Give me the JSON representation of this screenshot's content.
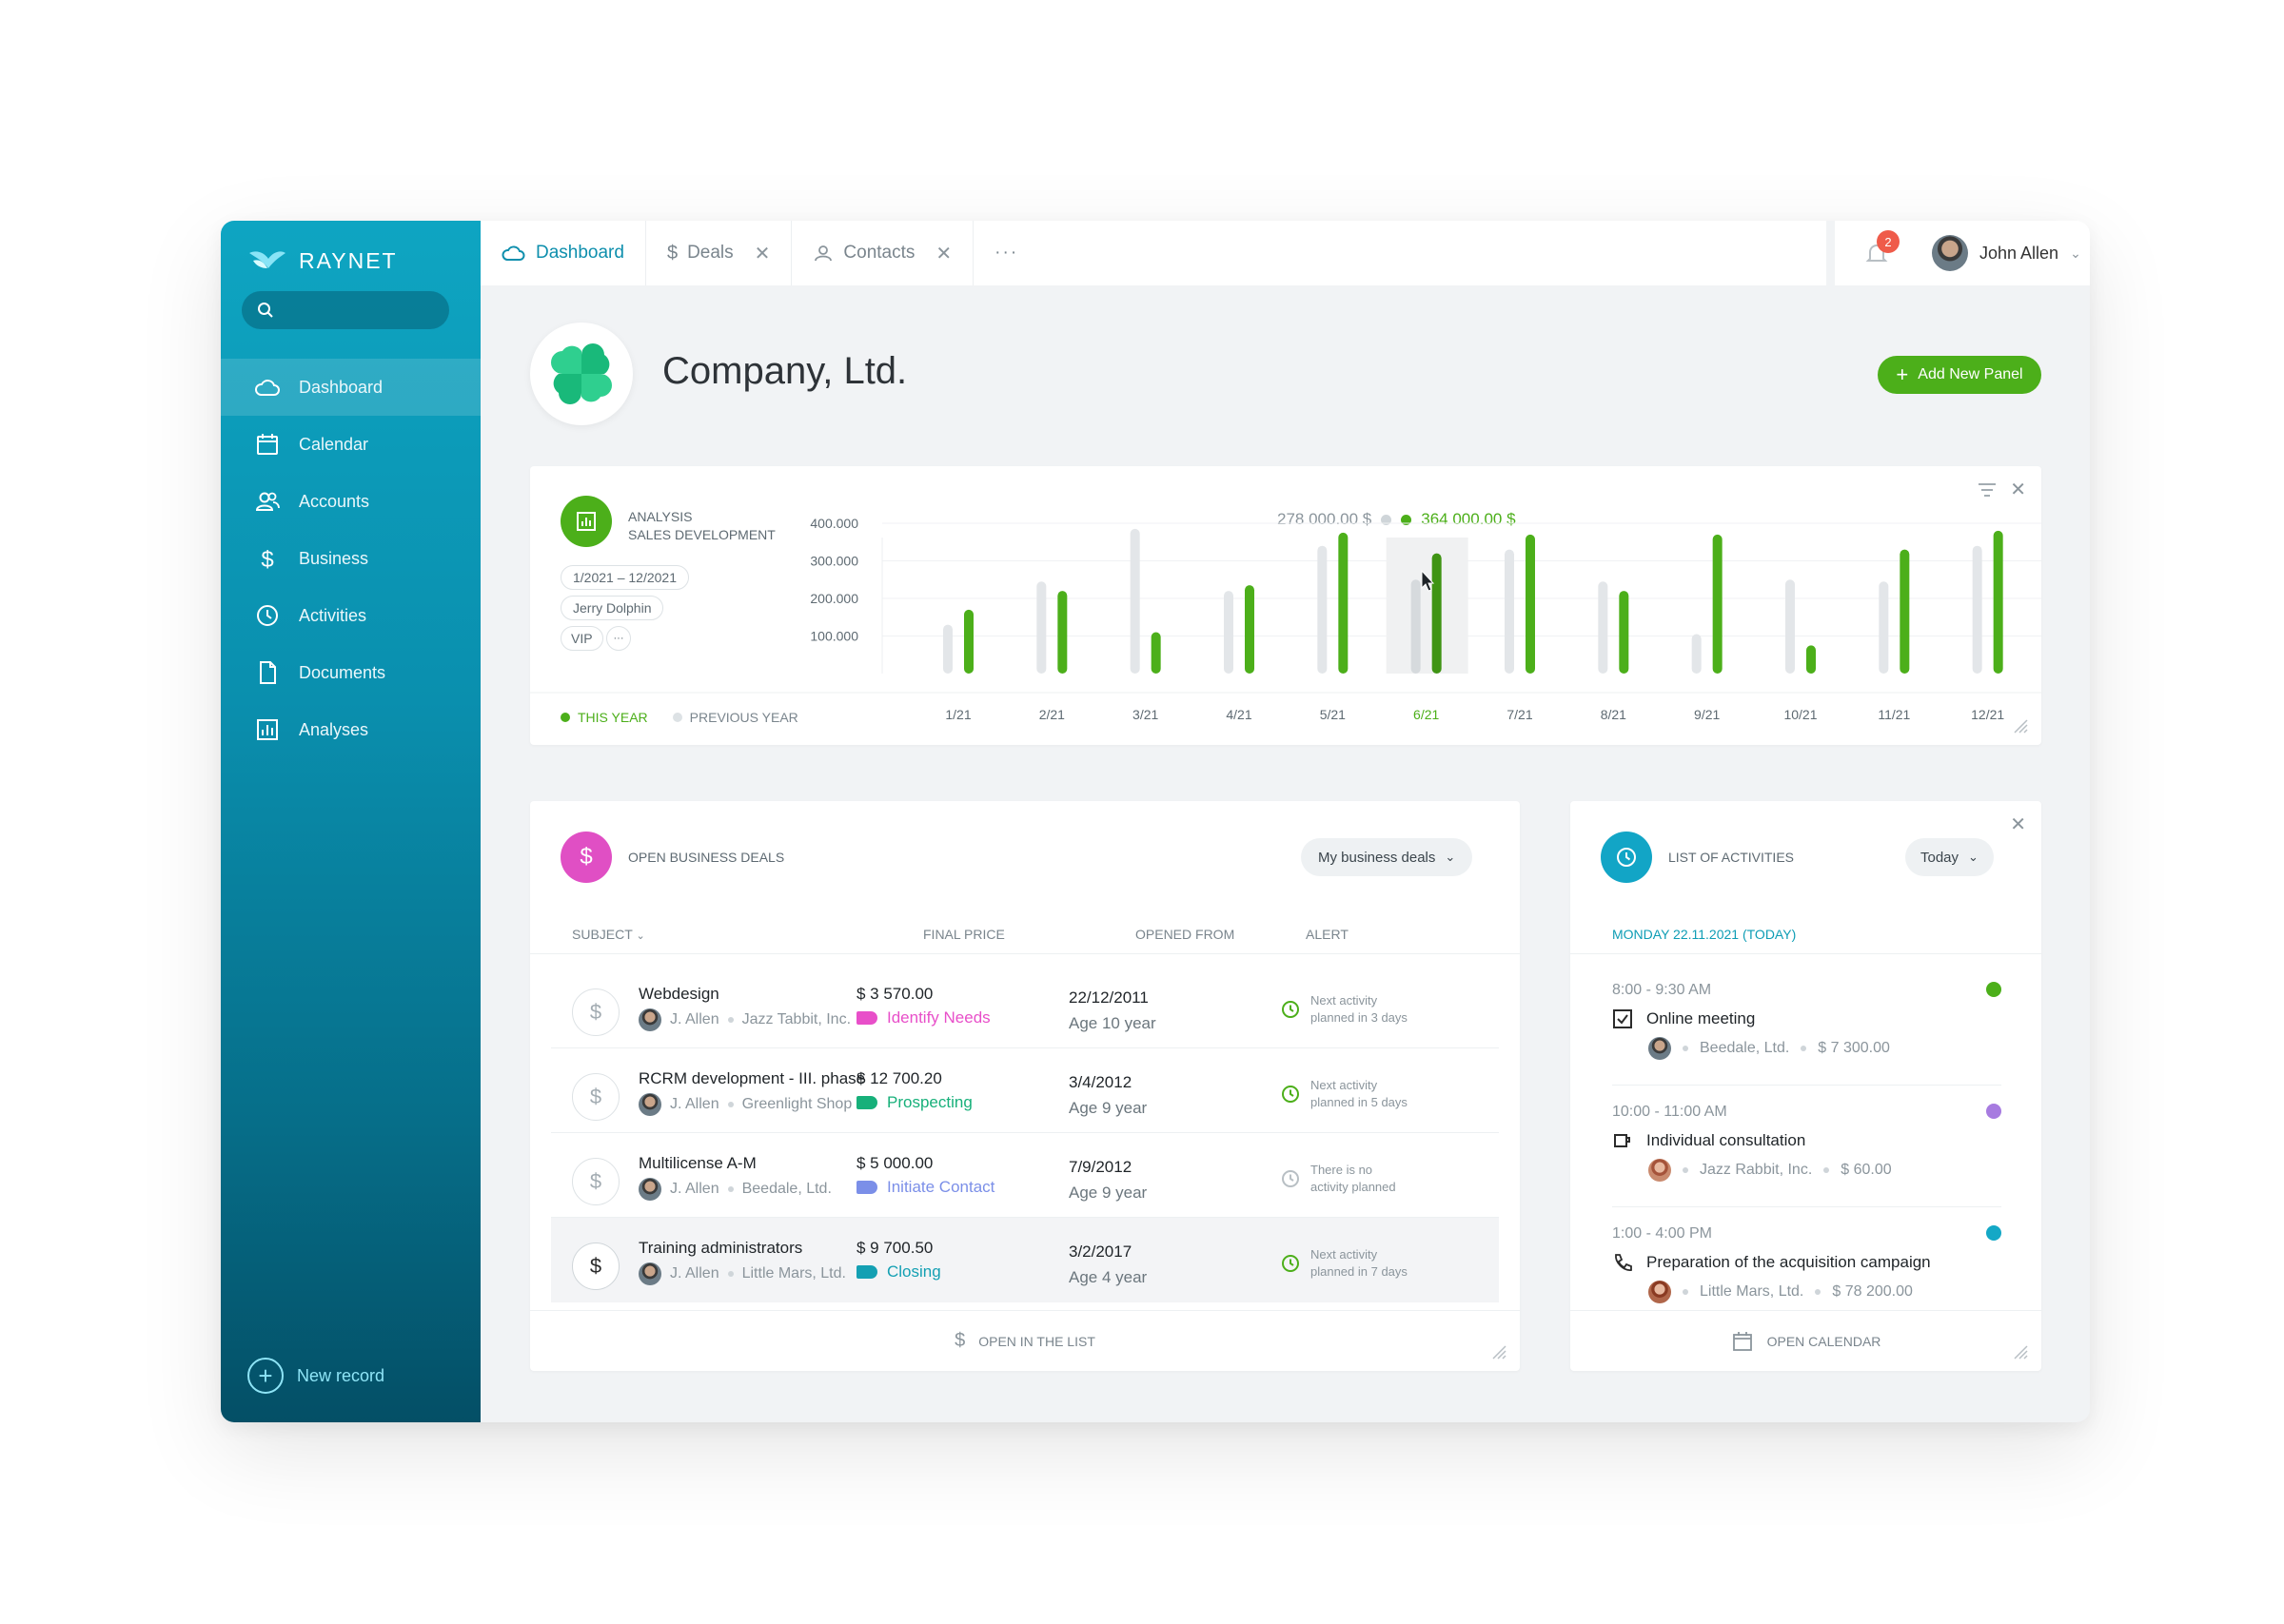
{
  "app": {
    "logo_text": "RAYNET",
    "search_placeholder": "",
    "nav": [
      {
        "label": "Dashboard",
        "icon": "cloud-icon",
        "active": true
      },
      {
        "label": "Calendar",
        "icon": "calendar-icon",
        "active": false
      },
      {
        "label": "Accounts",
        "icon": "users-icon",
        "active": false
      },
      {
        "label": "Business",
        "icon": "dollar-icon",
        "active": false
      },
      {
        "label": "Activities",
        "icon": "clock-icon",
        "active": false
      },
      {
        "label": "Documents",
        "icon": "document-icon",
        "active": false
      },
      {
        "label": "Analyses",
        "icon": "chart-icon",
        "active": false
      }
    ],
    "new_record": "New record"
  },
  "tabs": [
    {
      "label": "Dashboard",
      "icon": "cloud-icon",
      "active": true,
      "closable": false
    },
    {
      "label": "Deals",
      "icon": "dollar-icon",
      "active": false,
      "closable": true
    },
    {
      "label": "Contacts",
      "icon": "user-icon",
      "active": false,
      "closable": true
    }
  ],
  "tabs_more": "···",
  "user": {
    "name": "John Allen",
    "notifications": "2"
  },
  "company": {
    "name": "Company, Ltd.",
    "add_panel_label": "Add New Panel"
  },
  "analysis": {
    "title_line1": "ANALYSIS",
    "title_line2": "SALES DEVELOPMENT",
    "chips": [
      "1/2021 – 12/2021",
      "Jerry Dolphin",
      "VIP",
      "···"
    ],
    "total_previous": "278 000.00 $",
    "total_current": "364 000.00 $",
    "legend_current": "THIS YEAR",
    "legend_previous": "PREVIOUS YEAR"
  },
  "chart_data": {
    "type": "bar",
    "categories": [
      "1/21",
      "2/21",
      "3/21",
      "4/21",
      "5/21",
      "6/21",
      "7/21",
      "8/21",
      "9/21",
      "10/21",
      "11/21",
      "12/21"
    ],
    "series": [
      {
        "name": "PREVIOUS YEAR",
        "color": "#e3e6e9",
        "values": [
          130000,
          245000,
          385000,
          220000,
          340000,
          250000,
          330000,
          245000,
          105000,
          250000,
          245000,
          340000
        ]
      },
      {
        "name": "THIS YEAR",
        "color": "#4caf1a",
        "values": [
          170000,
          220000,
          110000,
          235000,
          375000,
          320000,
          370000,
          220000,
          370000,
          75000,
          330000,
          380000
        ]
      }
    ],
    "yticks": [
      "100.000",
      "200.000",
      "300.000",
      "400.000"
    ],
    "ylim": [
      0,
      400000
    ],
    "highlight_category": "6/21",
    "grid": true
  },
  "deals": {
    "title": "OPEN BUSINESS DEALS",
    "filter": "My business deals",
    "columns": [
      "SUBJECT",
      "FINAL PRICE",
      "OPENED FROM",
      "ALERT"
    ],
    "rows": [
      {
        "subject": "Webdesign",
        "owner": "J. Allen",
        "company": "Jazz Tabbit, Inc.",
        "price": "$ 3 570.00",
        "stage": "Identify Needs",
        "stage_color": "#e84fc9",
        "date": "22/12/2011",
        "age": "Age 10 year",
        "alert_line1": "Next activity",
        "alert_line2": "planned in 3 days",
        "alert_color": "#4caf1a"
      },
      {
        "subject": "RCRM development - III. phase",
        "owner": "J. Allen",
        "company": "Greenlight Shop",
        "price": "$ 12 700.20",
        "stage": "Prospecting",
        "stage_color": "#17b07a",
        "date": "3/4/2012",
        "age": "Age 9 year",
        "alert_line1": "Next activity",
        "alert_line2": "planned in 5 days",
        "alert_color": "#4caf1a"
      },
      {
        "subject": "Multilicense A-M",
        "owner": "J. Allen",
        "company": "Beedale, Ltd.",
        "price": "$ 5 000.00",
        "stage": "Initiate Contact",
        "stage_color": "#7b8fe8",
        "date": "7/9/2012",
        "age": "Age 9 year",
        "alert_line1": "There is no",
        "alert_line2": "activity planned",
        "alert_color": "#b8bfc4"
      },
      {
        "subject": "Training administrators",
        "owner": "J. Allen",
        "company": "Little Mars, Ltd.",
        "price": "$ 9 700.50",
        "stage": "Closing",
        "stage_color": "#14a0b3",
        "date": "3/2/2017",
        "age": "Age 4 year",
        "alert_line1": "Next activity",
        "alert_line2": "planned in 7 days",
        "alert_color": "#4caf1a"
      }
    ],
    "footer": "OPEN IN THE LIST"
  },
  "activities": {
    "title": "LIST OF ACTIVITIES",
    "filter": "Today",
    "day": "MONDAY 22.11.2021 (TODAY)",
    "items": [
      {
        "time": "8:00 - 9:30 AM",
        "title": "Online meeting",
        "company": "Beedale, Ltd.",
        "amount": "$ 7 300.00",
        "dot": "#4caf1a",
        "icon": "checkbox-icon"
      },
      {
        "time": "10:00 - 11:00 AM",
        "title": "Individual consultation",
        "company": "Jazz Rabbit, Inc.",
        "amount": "$ 60.00",
        "dot": "#a77be0",
        "icon": "coffee-icon"
      },
      {
        "time": "1:00 - 4:00 PM",
        "title": "Preparation of the acquisition campaign",
        "company": "Little Mars, Ltd.",
        "amount": "$ 78 200.00",
        "dot": "#14a8c6",
        "icon": "phone-icon"
      }
    ],
    "footer": "OPEN CALENDAR"
  }
}
